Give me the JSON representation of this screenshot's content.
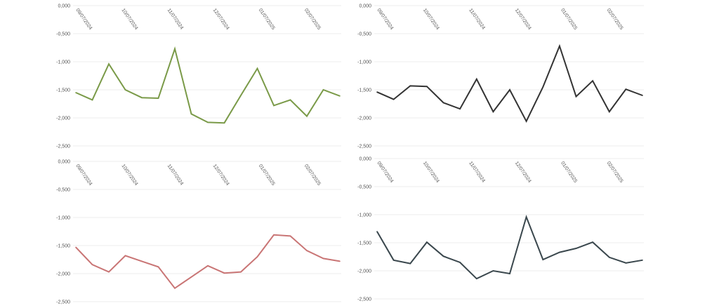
{
  "chart_data": [
    {
      "type": "line",
      "color": "#7a9a48",
      "x_tick_labels": [
        "09/07/2024",
        "10/07/2024",
        "11/07/2024",
        "12/07/2024",
        "01/07/2025",
        "02/07/2025"
      ],
      "y_tick_labels": [
        "0,000",
        "-0,500",
        "-1,000",
        "-1,500",
        "-2,000",
        "-2,500"
      ],
      "ylim": [
        -2.5,
        0
      ],
      "grid": true,
      "values": [
        -1.55,
        -1.68,
        -1.04,
        -1.5,
        -1.64,
        -1.65,
        -0.77,
        -1.93,
        -2.08,
        -2.09,
        -1.6,
        -1.12,
        -1.78,
        -1.68,
        -1.97,
        -1.5,
        -1.61
      ]
    },
    {
      "type": "line",
      "color": "#333333",
      "x_tick_labels": [
        "09/07/2024",
        "10/07/2024",
        "11/07/2024",
        "12/07/2024",
        "01/07/2025",
        "02/07/2025"
      ],
      "y_tick_labels": [
        "0,000",
        "-0,500",
        "-1,000",
        "-1,500",
        "-2,000",
        "-2,500"
      ],
      "ylim": [
        -2.5,
        0
      ],
      "grid": true,
      "values": [
        -1.54,
        -1.67,
        -1.43,
        -1.44,
        -1.73,
        -1.84,
        -1.31,
        -1.89,
        -1.5,
        -2.06,
        -1.45,
        -0.72,
        -1.62,
        -1.34,
        -1.89,
        -1.49,
        -1.6
      ]
    },
    {
      "type": "line",
      "color": "#c97575",
      "x_tick_labels": [
        "09/07/2024",
        "10/07/2024",
        "11/07/2024",
        "12/07/2024",
        "01/07/2025",
        "02/07/2025"
      ],
      "y_tick_labels": [
        "0,000",
        "-0,500",
        "-1,000",
        "-1,500",
        "-2,000",
        "-2,500"
      ],
      "ylim": [
        -2.5,
        0
      ],
      "grid": true,
      "values": [
        -1.53,
        -1.84,
        -1.97,
        -1.68,
        -1.78,
        -1.88,
        -2.26,
        -2.06,
        -1.86,
        -1.99,
        -1.97,
        -1.7,
        -1.31,
        -1.33,
        -1.59,
        -1.73,
        -1.78
      ]
    },
    {
      "type": "line",
      "color": "#3a474d",
      "x_tick_labels": [
        "09/07/2024",
        "10/07/2024",
        "11/07/2024",
        "12/07/2024",
        "01/07/2025",
        "02/07/2025"
      ],
      "y_tick_labels": [
        "0,000",
        "-0,500",
        "-1,000",
        "-1,500",
        "-2,000",
        "-2,500"
      ],
      "ylim": [
        -2.5,
        0
      ],
      "grid": true,
      "values": [
        -1.3,
        -1.81,
        -1.87,
        -1.49,
        -1.74,
        -1.85,
        -2.14,
        -2.0,
        -2.05,
        -1.04,
        -1.8,
        -1.67,
        -1.6,
        -1.49,
        -1.76,
        -1.86,
        -1.81
      ]
    }
  ]
}
